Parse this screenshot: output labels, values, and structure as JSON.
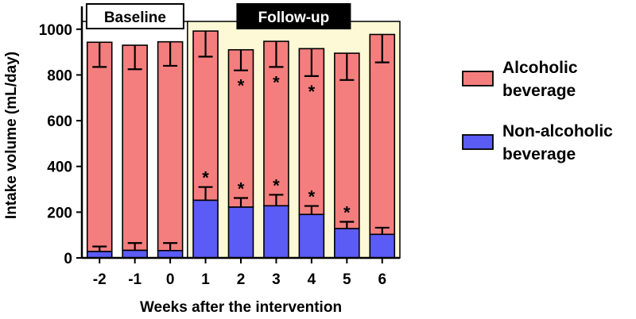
{
  "chart_data": {
    "type": "bar",
    "stacked": true,
    "categories": [
      "-2",
      "-1",
      "0",
      "1",
      "2",
      "3",
      "4",
      "5",
      "6"
    ],
    "series": [
      {
        "name": "Non-alcoholic beverage",
        "color": "#5b5bf5",
        "values": [
          28,
          33,
          32,
          252,
          222,
          228,
          190,
          128,
          103
        ],
        "error_upper": [
          50,
          65,
          65,
          310,
          262,
          276,
          227,
          158,
          132
        ],
        "significant": [
          false,
          false,
          false,
          true,
          true,
          true,
          true,
          true,
          false
        ]
      },
      {
        "name": "Alcoholic beverage",
        "color": "#f47e7e",
        "totals": [
          943,
          930,
          945,
          992,
          910,
          947,
          915,
          895,
          977
        ],
        "error_lower": [
          835,
          825,
          840,
          880,
          820,
          835,
          795,
          778,
          855
        ],
        "significant": [
          false,
          false,
          false,
          false,
          true,
          true,
          true,
          false,
          false
        ]
      }
    ],
    "xlabel": "Weeks after the intervention",
    "ylabel": "Intake volume (mL/day)",
    "ylim": [
      0,
      1100
    ],
    "yticks": [
      "0",
      "200",
      "400",
      "600",
      "800",
      "1000"
    ],
    "periods": [
      {
        "label": "Baseline",
        "categories": [
          "-2",
          "-1",
          "0"
        ],
        "background": "#ffffff",
        "label_fill": "#ffffff",
        "label_color": "#000000"
      },
      {
        "label": "Follow-up",
        "categories": [
          "1",
          "2",
          "3",
          "4",
          "5",
          "6"
        ],
        "background": "#fdf9d6",
        "label_fill": "#000000",
        "label_color": "#ffffff"
      }
    ],
    "significance_marker": "*",
    "legend": {
      "placement": "right",
      "entries": [
        {
          "label_lines": [
            "Alcoholic",
            "beverage"
          ],
          "color": "#f47e7e"
        },
        {
          "label_lines": [
            "Non-alcoholic",
            "beverage"
          ],
          "color": "#5b5bf5"
        }
      ]
    },
    "grid": false
  }
}
